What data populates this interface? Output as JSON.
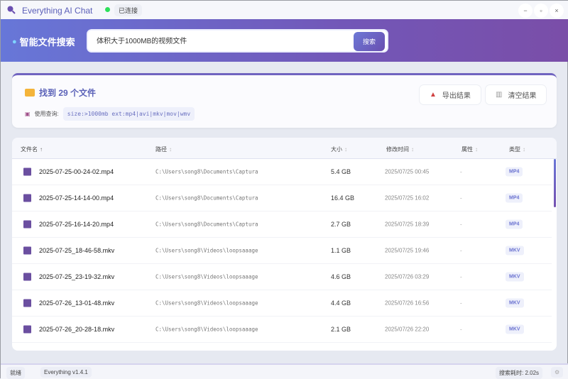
{
  "window": {
    "title": "Everything AI Chat",
    "status": "已连接",
    "min": "−",
    "max": "▫",
    "close": "×"
  },
  "header": {
    "title": "智能文件搜索",
    "search_value": "体积大于1000MB的视频文件",
    "search_button": "搜索"
  },
  "summary": {
    "found": "找到 29 个文件",
    "query_label": "使用查询:",
    "query": "size:>1000mb ext:mp4|avi|mkv|mov|wmv",
    "export": "导出结果",
    "clear": "清空结果"
  },
  "table": {
    "headers": {
      "name": "文件名",
      "path": "路径",
      "size": "大小",
      "modified": "修改时间",
      "attr": "属性",
      "type": "类型"
    },
    "sort_asc": "↑",
    "sort": "↕",
    "rows": [
      {
        "name": "2025-07-25-00-24-02.mp4",
        "path": "C:\\Users\\song8\\Documents\\Captura",
        "size": "5.4 GB",
        "modified": "2025/07/25 00:45",
        "attr": "-",
        "type": "MP4"
      },
      {
        "name": "2025-07-25-14-14-00.mp4",
        "path": "C:\\Users\\song8\\Documents\\Captura",
        "size": "16.4 GB",
        "modified": "2025/07/25 16:02",
        "attr": "-",
        "type": "MP4"
      },
      {
        "name": "2025-07-25-16-14-20.mp4",
        "path": "C:\\Users\\song8\\Documents\\Captura",
        "size": "2.7 GB",
        "modified": "2025/07/25 18:39",
        "attr": "-",
        "type": "MP4"
      },
      {
        "name": "2025-07-25_18-46-58.mkv",
        "path": "C:\\Users\\song8\\Videos\\loopsaaage",
        "size": "1.1 GB",
        "modified": "2025/07/25 19:46",
        "attr": "-",
        "type": "MKV"
      },
      {
        "name": "2025-07-25_23-19-32.mkv",
        "path": "C:\\Users\\song8\\Videos\\loopsaaage",
        "size": "4.6 GB",
        "modified": "2025/07/26 03:29",
        "attr": "-",
        "type": "MKV"
      },
      {
        "name": "2025-07-26_13-01-48.mkv",
        "path": "C:\\Users\\song8\\Videos\\loopsaaage",
        "size": "4.4 GB",
        "modified": "2025/07/26 16:56",
        "attr": "-",
        "type": "MKV"
      },
      {
        "name": "2025-07-26_20-28-18.mkv",
        "path": "C:\\Users\\song8\\Videos\\loopsaaage",
        "size": "2.1 GB",
        "modified": "2025/07/26 22:20",
        "attr": "-",
        "type": "MKV"
      }
    ]
  },
  "statusbar": {
    "state": "就绪",
    "version": "Everything v1.4.1",
    "time": "搜索耗时: 2.02s"
  }
}
